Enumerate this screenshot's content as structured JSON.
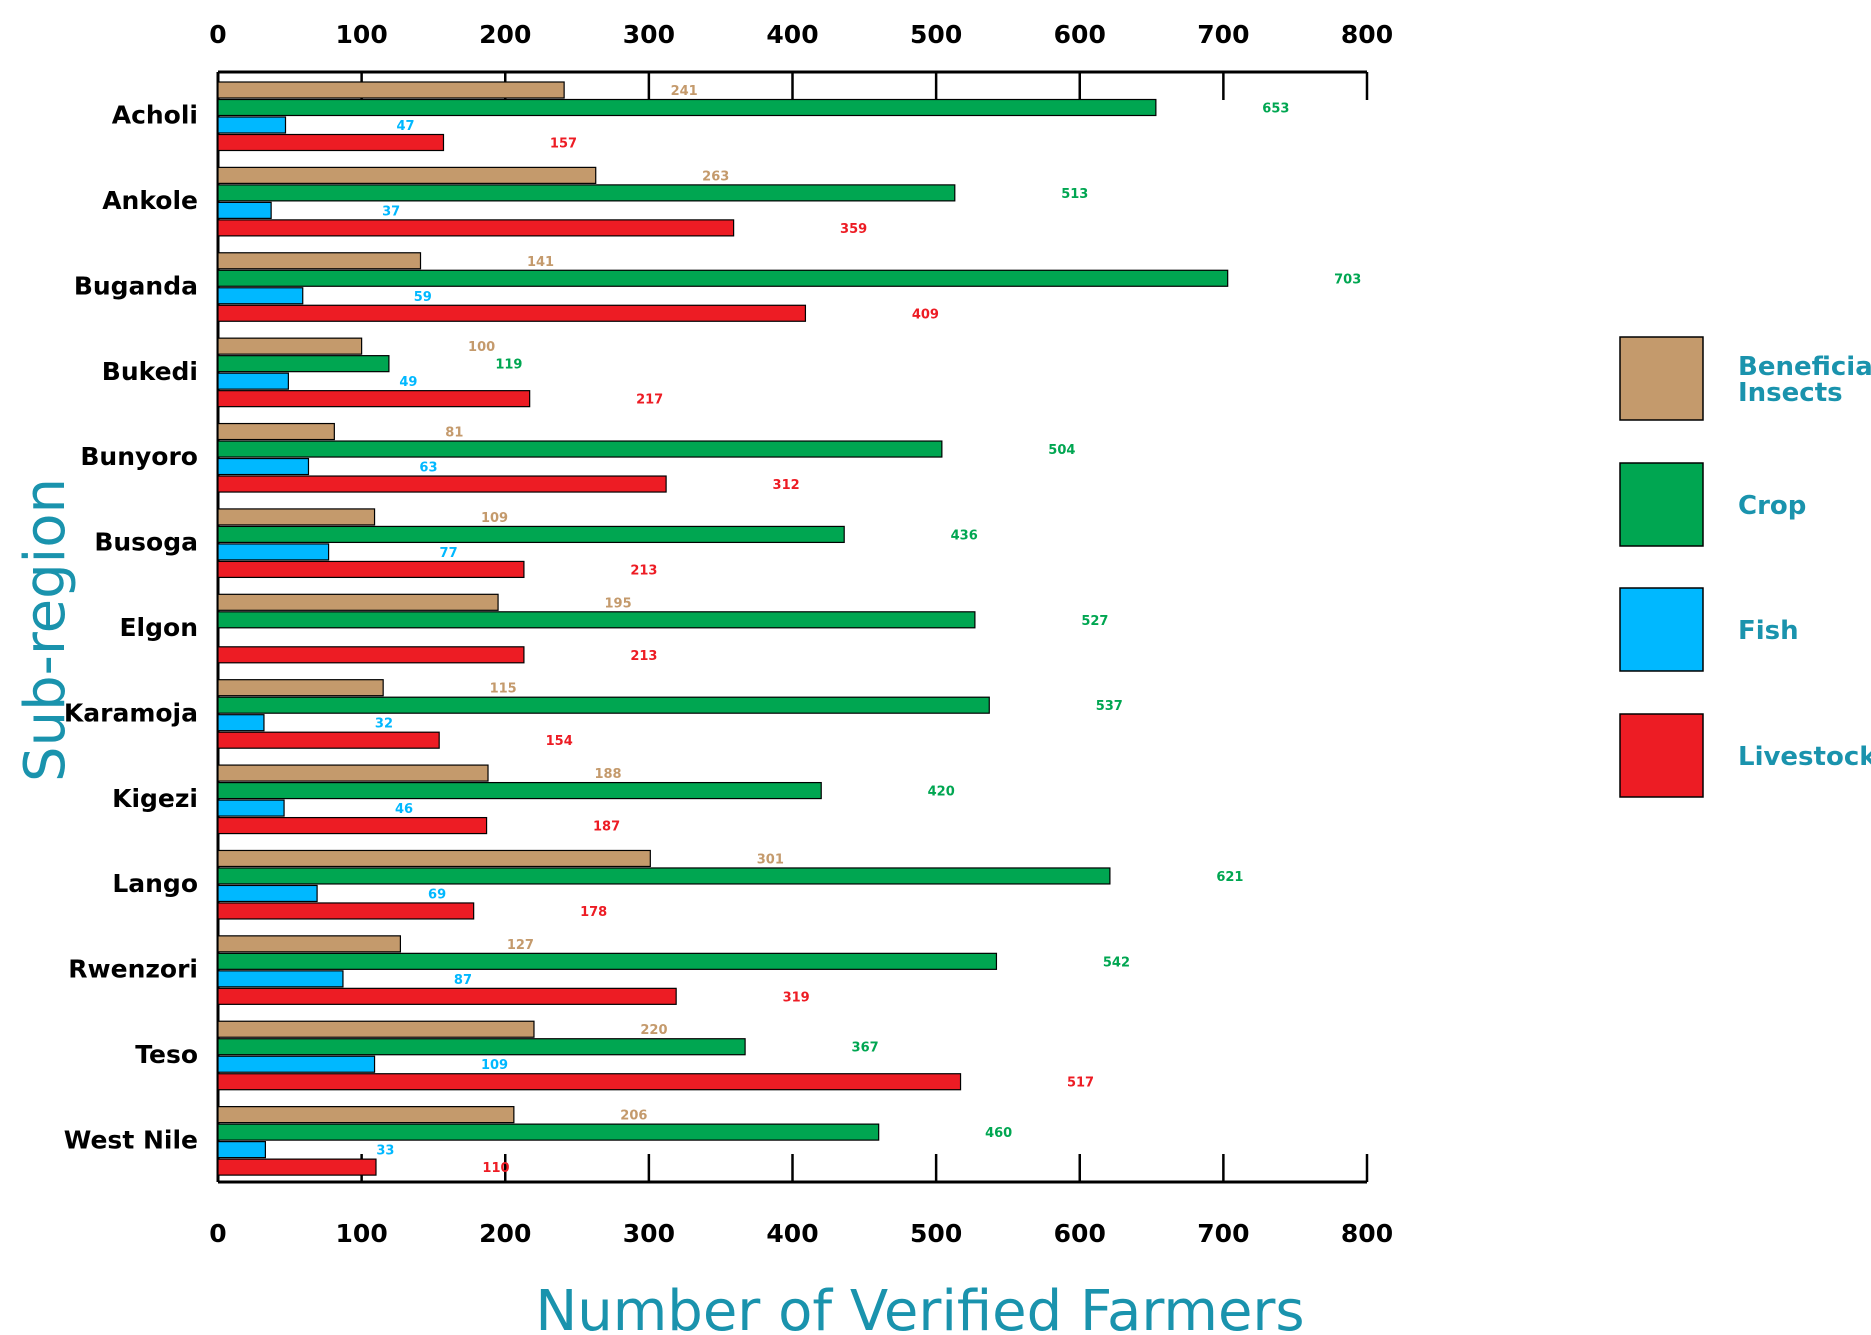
{
  "chart_data": {
    "type": "bar",
    "orientation": "horizontal",
    "categories": [
      "Acholi",
      "Ankole",
      "Buganda",
      "Bukedi",
      "Bunyoro",
      "Busoga",
      "Elgon",
      "Karamoja",
      "Kigezi",
      "Lango",
      "Rwenzori",
      "Teso",
      "West Nile"
    ],
    "series": [
      {
        "name": "Beneficial Insects",
        "color": "#c49a6c",
        "values": [
          241,
          263,
          141,
          100,
          81,
          109,
          195,
          115,
          188,
          301,
          127,
          220,
          206
        ]
      },
      {
        "name": "Crop",
        "color": "#00a651",
        "values": [
          653,
          513,
          703,
          119,
          504,
          436,
          527,
          537,
          420,
          621,
          542,
          367,
          460
        ]
      },
      {
        "name": "Fish",
        "color": "#00b8ff",
        "values": [
          47,
          37,
          59,
          49,
          63,
          77,
          null,
          32,
          46,
          69,
          87,
          109,
          33
        ]
      },
      {
        "name": "Livestock",
        "color": "#ed1c24",
        "values": [
          157,
          359,
          409,
          217,
          312,
          213,
          213,
          154,
          187,
          178,
          319,
          517,
          110
        ]
      }
    ],
    "label_colors": [
      "#c49a6c",
      "#00a651",
      "#00b8ff",
      "#ed1c24"
    ],
    "xlabel": "Number of Verified Farmers",
    "ylabel": "Sub-region",
    "xlim": [
      0,
      800
    ],
    "xticks": [
      "0",
      "100",
      "200",
      "300",
      "400",
      "500",
      "600",
      "700",
      "800"
    ],
    "x_axis_position": "top-and-bottom",
    "legend_position": "right",
    "grid": false,
    "title_color": "#1a93ad"
  }
}
